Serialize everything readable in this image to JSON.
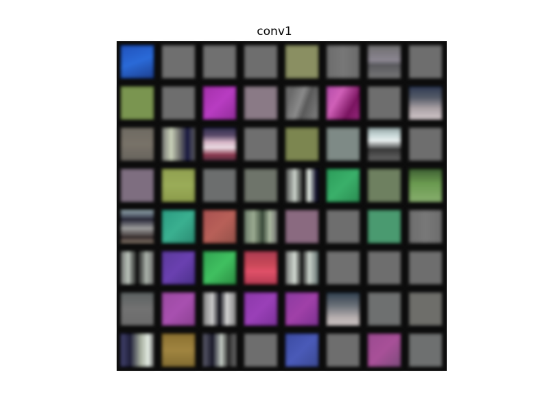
{
  "title": "conv1",
  "grid": {
    "rows": 8,
    "cols": 8,
    "filters": [
      {
        "name": "filter-1-1",
        "bg": "linear-gradient(160deg,#1f4fb8 0%,#2a6ad8 50%,#1c3c8a 100%)"
      },
      {
        "name": "filter-1-2",
        "bg": "#6f6f6f"
      },
      {
        "name": "filter-1-3",
        "bg": "#707070"
      },
      {
        "name": "filter-1-4",
        "bg": "#6e6e6e"
      },
      {
        "name": "filter-1-5",
        "bg": "#8a8f62"
      },
      {
        "name": "filter-1-6",
        "bg": "linear-gradient(90deg,#6c6c6c,#777,#6a6a6a)"
      },
      {
        "name": "filter-1-7",
        "bg": "linear-gradient(180deg,#6c6c6c 0%,#8a8590 45%,#5a5a5e 60%,#7a7a7a 100%)"
      },
      {
        "name": "filter-1-8",
        "bg": "#6e6e6e"
      },
      {
        "name": "filter-2-1",
        "bg": "#7a9550"
      },
      {
        "name": "filter-2-2",
        "bg": "#6e6e6e"
      },
      {
        "name": "filter-2-3",
        "bg": "linear-gradient(135deg,#a22fa8,#b83cc2,#8e2a96)"
      },
      {
        "name": "filter-2-4",
        "bg": "#8a7a86"
      },
      {
        "name": "filter-2-5",
        "bg": "linear-gradient(110deg,#6a6a6a 20%,#8a8a8a 45%,#5a5a5a 60%,#767676 85%)"
      },
      {
        "name": "filter-2-6",
        "bg": "linear-gradient(120deg,#b04aa8 0%,#d060b8 35%,#7a1460 70%,#9a2a80 100%)"
      },
      {
        "name": "filter-2-7",
        "bg": "#6e6e6e"
      },
      {
        "name": "filter-2-8",
        "bg": "linear-gradient(180deg,#2a3650 0%,#555b68 35%,#a9a0a4 65%,#d8cdd0 100%)"
      },
      {
        "name": "filter-3-1",
        "bg": "linear-gradient(180deg,#6e6a62,#787268,#66625c)"
      },
      {
        "name": "filter-3-2",
        "bg": "linear-gradient(90deg,#6b6b6b 0%,#c8d0b8 30%,#6a6a6a 55%,#1a1a40 75%,#6a6a6a 100%)"
      },
      {
        "name": "filter-3-3",
        "bg": "linear-gradient(180deg,#2a2a4a 0%,#5a4a6a 25%,#d8b8c8 45%,#e8d8e0 60%,#8a3a50 80%,#4a2a3a 100%)"
      },
      {
        "name": "filter-3-4",
        "bg": "#6f6f6f"
      },
      {
        "name": "filter-3-5",
        "bg": "#7c8650"
      },
      {
        "name": "filter-3-6",
        "bg": "#7e8a86"
      },
      {
        "name": "filter-3-7",
        "bg": "linear-gradient(180deg,#8a9a9a 0%,#c8d8d8 25%,#e8eeee 40%,#3a3a3a 65%,#6a6a6a 100%)"
      },
      {
        "name": "filter-3-8",
        "bg": "#6e6e6e"
      },
      {
        "name": "filter-4-1",
        "bg": "#7e6e80"
      },
      {
        "name": "filter-4-2",
        "bg": "linear-gradient(180deg,#90a050,#9aac58,#8a9a4a)"
      },
      {
        "name": "filter-4-3",
        "bg": "#6c6e6e"
      },
      {
        "name": "filter-4-4",
        "bg": "#6e746a"
      },
      {
        "name": "filter-4-5",
        "bg": "linear-gradient(90deg,#3a3a3a 0%,#c8d0c8 30%,#101010 55%,#e0e8e0 70%,#181830 90%)"
      },
      {
        "name": "filter-4-6",
        "bg": "linear-gradient(135deg,#2a9a58,#3ab06a,#2a8a50)"
      },
      {
        "name": "filter-4-7",
        "bg": "#6e8060"
      },
      {
        "name": "filter-4-8",
        "bg": "linear-gradient(180deg,#3a5a30 0%,#6a9a50 45%,#8ab070 100%)"
      },
      {
        "name": "filter-5-1",
        "bg": "linear-gradient(180deg,#a8c0c8 0%,#2a2a3a 30%,#9a9a9a 55%,#3a3030 80%,#9a8a7a 100%)"
      },
      {
        "name": "filter-5-2",
        "bg": "linear-gradient(135deg,#2a9a80,#3ab090,#2a8870)"
      },
      {
        "name": "filter-5-3",
        "bg": "linear-gradient(135deg,#a85050,#b86058,#905048)"
      },
      {
        "name": "filter-5-4",
        "bg": "linear-gradient(90deg,#6a7a6a 0%,#9aaa90 30%,#3a4a3a 55%,#aab8a0 75%,#6a6a6a 100%)"
      },
      {
        "name": "filter-5-5",
        "bg": "#8a6a80"
      },
      {
        "name": "filter-5-6",
        "bg": "#6e6e6e"
      },
      {
        "name": "filter-5-7",
        "bg": "#4a9a70"
      },
      {
        "name": "filter-5-8",
        "bg": "linear-gradient(90deg,#6c6c6c,#787878,#6c6c6c)"
      },
      {
        "name": "filter-6-1",
        "bg": "linear-gradient(90deg,#6a6a6a 0%,#b8c0b8 25%,#101010 50%,#a8b0a8 75%,#6a6a6a 100%)"
      },
      {
        "name": "filter-6-2",
        "bg": "linear-gradient(135deg,#5a3a9a,#6a40b0,#4a3088)"
      },
      {
        "name": "filter-6-3",
        "bg": "linear-gradient(135deg,#30a050,#40c060,#2a8a40)"
      },
      {
        "name": "filter-6-4",
        "bg": "linear-gradient(180deg,#a83a50 0%,#c84858 40%,#e05068 60%,#b03a50 100%)"
      },
      {
        "name": "filter-6-5",
        "bg": "linear-gradient(90deg,#6a6a6a 0%,#d0d8d0 30%,#1a1a1a 50%,#c8d0c8 70%,#5a6a6a 100%)"
      },
      {
        "name": "filter-6-6",
        "bg": "#707070"
      },
      {
        "name": "filter-6-7",
        "bg": "#6e6e6e"
      },
      {
        "name": "filter-6-8",
        "bg": "#6e6e6e"
      },
      {
        "name": "filter-7-1",
        "bg": "linear-gradient(180deg,#5a6060,#727272,#6a6a6a)"
      },
      {
        "name": "filter-7-2",
        "bg": "linear-gradient(135deg,#9a4aa0,#a850b0,#8a4090)"
      },
      {
        "name": "filter-7-3",
        "bg": "linear-gradient(90deg,#7a7a7a 0%,#c8c8c8 30%,#101018 50%,#d0d0d0 70%,#7a7a7a 100%)"
      },
      {
        "name": "filter-7-4",
        "bg": "linear-gradient(135deg,#8a38a8,#9a40b8,#7a3098)"
      },
      {
        "name": "filter-7-5",
        "bg": "linear-gradient(135deg,#8a3aa0,#a040a8,#7a3090)"
      },
      {
        "name": "filter-7-6",
        "bg": "linear-gradient(180deg,#2a3a4a 0%,#6a7078 40%,#b8b0b0 75%,#d0c8c8 100%)"
      },
      {
        "name": "filter-7-7",
        "bg": "#6e7070"
      },
      {
        "name": "filter-7-8",
        "bg": "#6e6e6a"
      },
      {
        "name": "filter-8-1",
        "bg": "linear-gradient(90deg,#4a4a7a 0%,#20203a 30%,#a8b0a0 60%,#e0e8e0 80%,#6a6a6a 100%)"
      },
      {
        "name": "filter-8-2",
        "bg": "linear-gradient(180deg,#8a7030,#a08440,#806a30)"
      },
      {
        "name": "filter-8-3",
        "bg": "linear-gradient(90deg,#6a6a7a 0%,#1a1a2a 30%,#c0c8c0 55%,#2a2a2a 75%,#7a7a7a 100%)"
      },
      {
        "name": "filter-8-4",
        "bg": "#6e6e6e"
      },
      {
        "name": "filter-8-5",
        "bg": "linear-gradient(135deg,#3a4aa0,#4a5ab8,#3a4890)"
      },
      {
        "name": "filter-8-6",
        "bg": "#6e6e6e"
      },
      {
        "name": "filter-8-7",
        "bg": "linear-gradient(135deg,#9a4a90,#a85098,#7a4a7a)"
      },
      {
        "name": "filter-8-8",
        "bg": "#6e7070"
      }
    ]
  }
}
